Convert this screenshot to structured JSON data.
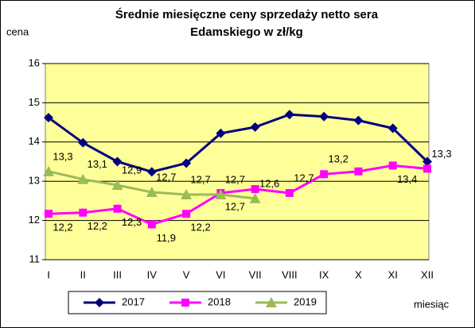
{
  "chart_data": {
    "type": "line",
    "title": [
      "Średnie miesięczne ceny sprzedaży netto sera",
      "Edamskiego w zł/kg"
    ],
    "y_label": "cena",
    "x_label": "miesiąc",
    "categories": [
      "I",
      "II",
      "III",
      "IV",
      "V",
      "VI",
      "VII",
      "VIII",
      "IX",
      "X",
      "XI",
      "XII"
    ],
    "ylim": [
      11,
      16
    ],
    "yticks": [
      11,
      12,
      13,
      14,
      15,
      16
    ],
    "grid": true,
    "legend": "bottom",
    "series": [
      {
        "name": "2017",
        "color": "#000080",
        "marker": "diamond",
        "values": [
          14.62,
          13.98,
          13.5,
          13.24,
          13.46,
          14.22,
          14.38,
          14.7,
          14.65,
          14.55,
          14.35,
          13.5
        ]
      },
      {
        "name": "2018",
        "color": "#ff00ff",
        "marker": "square",
        "values": [
          12.17,
          12.2,
          12.3,
          11.9,
          12.17,
          12.7,
          12.8,
          12.7,
          13.18,
          13.25,
          13.4,
          13.32
        ],
        "value_labels": [
          "12,2",
          "12,2",
          "12,3",
          "11,9",
          "12,2",
          "12,7",
          null,
          "12,7",
          "13,2",
          null,
          "13,4",
          "13,3"
        ]
      },
      {
        "name": "2019",
        "color": "#9bbb59",
        "marker": "triangle",
        "values": [
          13.25,
          13.05,
          12.9,
          12.72,
          12.66,
          12.66,
          12.56,
          null,
          null,
          null,
          null,
          null
        ],
        "value_labels": [
          "13,3",
          "13,1",
          "12,9",
          "12,7",
          "12,7",
          "12,7",
          "12,6",
          null,
          null,
          null,
          null,
          null
        ]
      }
    ]
  }
}
